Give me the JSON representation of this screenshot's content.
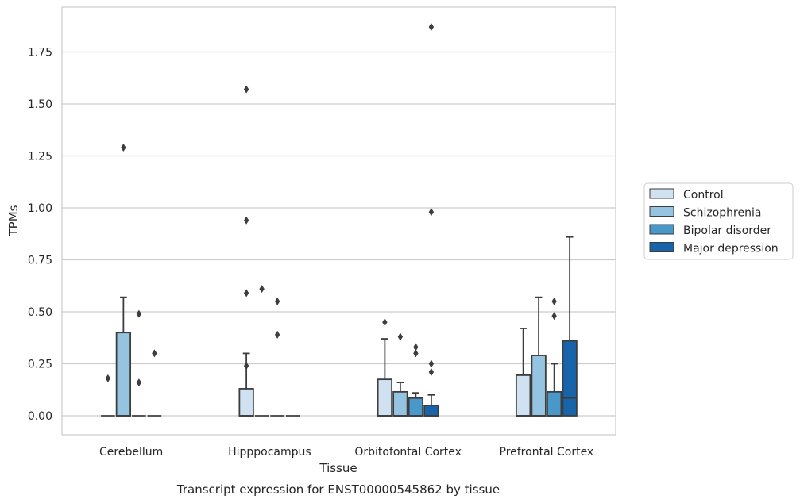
{
  "chart_data": {
    "type": "box",
    "title": "Transcript expression for ENST00000545862 by tissue",
    "xlabel": "Tissue",
    "ylabel": "TPMs",
    "ylim": [
      -0.09,
      1.97
    ],
    "yticks": [
      0.0,
      0.25,
      0.5,
      0.75,
      1.0,
      1.25,
      1.5,
      1.75
    ],
    "ytick_labels": [
      "0.00",
      "0.25",
      "0.50",
      "0.75",
      "1.00",
      "1.25",
      "1.50",
      "1.75"
    ],
    "categories": [
      "Cerebellum",
      "Hipppocampus",
      "Orbitofontal Cortex",
      "Prefrontal Cortex"
    ],
    "grid": true,
    "legend_position": "right",
    "series": [
      {
        "name": "Control",
        "color": "#d0e1f2",
        "boxes": [
          {
            "q1": 0.0,
            "median": 0.0,
            "q3": 0.0,
            "whislo": 0.0,
            "whishi": 0.0,
            "fliers": [
              0.18
            ]
          },
          {
            "q1": 0.0,
            "median": 0.0,
            "q3": 0.13,
            "whislo": 0.0,
            "whishi": 0.3,
            "fliers": [
              0.24,
              0.59,
              0.94,
              1.57
            ]
          },
          {
            "q1": 0.0,
            "median": 0.0,
            "q3": 0.175,
            "whislo": 0.0,
            "whishi": 0.37,
            "fliers": [
              0.45
            ]
          },
          {
            "q1": 0.0,
            "median": 0.0,
            "q3": 0.195,
            "whislo": 0.0,
            "whishi": 0.42,
            "fliers": []
          }
        ]
      },
      {
        "name": "Schizophrenia",
        "color": "#94c4df",
        "boxes": [
          {
            "q1": 0.0,
            "median": 0.0,
            "q3": 0.4,
            "whislo": 0.0,
            "whishi": 0.57,
            "fliers": [
              1.29
            ]
          },
          {
            "q1": 0.0,
            "median": 0.0,
            "q3": 0.0,
            "whislo": 0.0,
            "whishi": 0.0,
            "fliers": [
              0.61
            ]
          },
          {
            "q1": 0.0,
            "median": 0.0,
            "q3": 0.115,
            "whislo": 0.0,
            "whishi": 0.16,
            "fliers": [
              0.38
            ]
          },
          {
            "q1": 0.0,
            "median": 0.0,
            "q3": 0.29,
            "whislo": 0.0,
            "whishi": 0.57,
            "fliers": []
          }
        ]
      },
      {
        "name": "Bipolar disorder",
        "color": "#4a98c9",
        "boxes": [
          {
            "q1": 0.0,
            "median": 0.0,
            "q3": 0.0,
            "whislo": 0.0,
            "whishi": 0.0,
            "fliers": [
              0.16,
              0.49
            ]
          },
          {
            "q1": 0.0,
            "median": 0.0,
            "q3": 0.0,
            "whislo": 0.0,
            "whishi": 0.0,
            "fliers": [
              0.39,
              0.55
            ]
          },
          {
            "q1": 0.0,
            "median": 0.0,
            "q3": 0.085,
            "whislo": 0.0,
            "whishi": 0.11,
            "fliers": [
              0.3,
              0.33
            ]
          },
          {
            "q1": 0.0,
            "median": 0.0,
            "q3": 0.115,
            "whislo": 0.0,
            "whishi": 0.25,
            "fliers": [
              0.48,
              0.55
            ]
          }
        ]
      },
      {
        "name": "Major depression",
        "color": "#1764ab",
        "boxes": [
          {
            "q1": 0.0,
            "median": 0.0,
            "q3": 0.0,
            "whislo": 0.0,
            "whishi": 0.0,
            "fliers": [
              0.3
            ]
          },
          {
            "q1": 0.0,
            "median": 0.0,
            "q3": 0.0,
            "whislo": 0.0,
            "whishi": 0.0,
            "fliers": []
          },
          {
            "q1": 0.0,
            "median": 0.0,
            "q3": 0.05,
            "whislo": 0.0,
            "whishi": 0.1,
            "fliers": [
              0.21,
              0.25,
              0.98,
              1.87
            ]
          },
          {
            "q1": 0.0,
            "median": 0.085,
            "q3": 0.36,
            "whislo": 0.0,
            "whishi": 0.86,
            "fliers": []
          }
        ]
      }
    ]
  }
}
